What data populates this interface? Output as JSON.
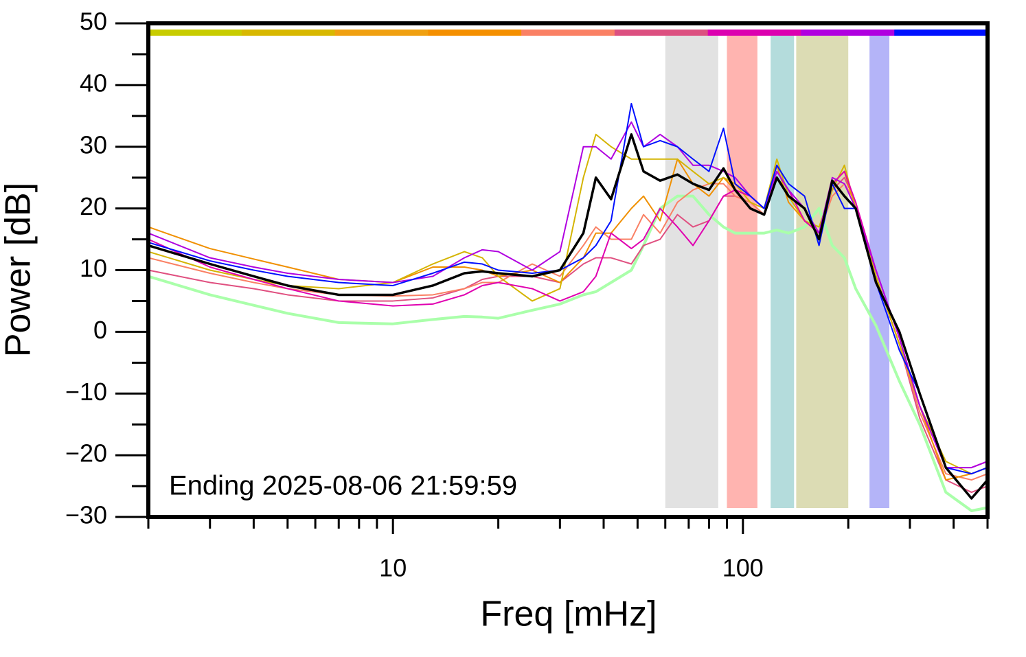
{
  "chart_data": {
    "type": "line",
    "xlabel": "Freq [mHz]",
    "ylabel": "Power [dB]",
    "annotation": "Ending 2025-08-06 21:59:59",
    "xscale": "log",
    "xlim": [
      2,
      500
    ],
    "xticks": [
      10,
      100
    ],
    "xminorticks": [
      2,
      3,
      4,
      5,
      6,
      7,
      8,
      9,
      20,
      30,
      40,
      50,
      60,
      70,
      80,
      90,
      200,
      300,
      400,
      500
    ],
    "ylim": [
      -30,
      50
    ],
    "yticks": [
      {
        "value": -30,
        "label": "−30"
      },
      {
        "value": -20,
        "label": "−20"
      },
      {
        "value": -10,
        "label": "−10"
      },
      0,
      10,
      20,
      30,
      40,
      50
    ],
    "yminorticks": [
      -25,
      -15,
      -5,
      5,
      15,
      25,
      35,
      45
    ],
    "colorbar": [
      "#c8cc00",
      "#d8b800",
      "#f0a010",
      "#f59000",
      "#fa8064",
      "#dc5080",
      "#dc00b0",
      "#b000e0",
      "#0010ff"
    ],
    "bands": [
      {
        "x": [
          60,
          85
        ],
        "color": "#e2e2e2"
      },
      {
        "x": [
          90,
          110
        ],
        "color": "#ffb4b0"
      },
      {
        "x": [
          120,
          140
        ],
        "color": "#b4dcdc"
      },
      {
        "x": [
          142,
          200
        ],
        "color": "#dcdcb4"
      },
      {
        "x": [
          230,
          262
        ],
        "color": "#b4b4f8"
      }
    ],
    "x": [
      2,
      3,
      4,
      5,
      7,
      10,
      13,
      16,
      18,
      20,
      25,
      30,
      35,
      38,
      42,
      48,
      52,
      58,
      65,
      72,
      80,
      88,
      95,
      105,
      115,
      125,
      135,
      150,
      165,
      180,
      195,
      210,
      240,
      280,
      320,
      380,
      450,
      500
    ],
    "series": [
      {
        "color": "#aaffaa",
        "width": 4,
        "values": [
          9,
          6,
          4.3,
          3,
          1.5,
          1.3,
          2,
          2.5,
          2.4,
          2.2,
          3.5,
          4.5,
          6,
          6.5,
          8,
          10,
          14,
          20,
          22,
          22,
          19,
          17,
          16,
          16,
          16,
          16.5,
          16,
          17,
          20,
          14,
          12,
          7,
          1,
          -8,
          -15,
          -26,
          -29,
          -28.5
        ]
      },
      {
        "color": "#e05080",
        "width": 2,
        "values": [
          10,
          8,
          7,
          6,
          5,
          5,
          5.5,
          7,
          8.5,
          9,
          9,
          8,
          11,
          12,
          12,
          11,
          14,
          15,
          19,
          17,
          18,
          22,
          22,
          21,
          19,
          25,
          22,
          18,
          16,
          23,
          25,
          21,
          9,
          -2,
          -14,
          -24,
          -26,
          -25
        ]
      },
      {
        "color": "#fa8064",
        "width": 2,
        "values": [
          12,
          9.5,
          8,
          7,
          6,
          5.8,
          6,
          7,
          8,
          8,
          11,
          9,
          14,
          17,
          15,
          15,
          19,
          16,
          21,
          23,
          24,
          24,
          22,
          21,
          19,
          25,
          22,
          18,
          16,
          22,
          24,
          21,
          9,
          -2,
          -13,
          -23,
          -24,
          -23
        ]
      },
      {
        "color": "#f09000",
        "width": 2,
        "values": [
          17,
          13.5,
          11.8,
          10.5,
          8.5,
          8,
          10.5,
          10.5,
          10,
          9,
          10,
          8,
          12,
          16,
          16,
          20,
          22,
          18,
          28,
          24,
          22,
          25,
          23,
          22,
          20,
          27,
          21,
          18,
          16,
          24,
          26,
          20,
          9,
          -2,
          -12,
          -24,
          -23,
          -22
        ]
      },
      {
        "color": "#d4b400",
        "width": 2,
        "values": [
          13,
          10,
          8.5,
          7.5,
          7,
          8,
          11,
          13,
          12,
          9,
          5,
          7,
          25,
          32,
          30,
          28,
          28,
          28,
          28,
          26,
          24,
          25,
          24,
          21,
          20,
          28,
          22,
          18,
          17,
          23,
          27,
          20,
          9,
          -2,
          -12,
          -21,
          -23,
          -22
        ]
      },
      {
        "color": "#e000b0",
        "width": 2,
        "values": [
          15,
          10.5,
          8.5,
          7,
          5,
          4.2,
          4.5,
          6,
          7.5,
          8,
          7,
          5,
          6.5,
          9,
          16,
          13.5,
          15,
          20,
          17,
          14,
          18,
          22,
          23,
          22,
          20,
          26,
          23,
          18,
          16,
          24,
          26,
          21,
          10,
          -1,
          -12,
          -22,
          -22,
          -21
        ]
      },
      {
        "color": "#b000e0",
        "width": 2,
        "values": [
          16,
          12,
          10.5,
          9.5,
          8.5,
          8,
          9,
          12,
          13.3,
          13,
          10,
          13,
          30,
          30,
          28,
          34,
          30,
          32,
          30,
          27,
          27,
          26,
          25,
          22,
          20,
          26,
          23,
          20,
          16,
          25,
          24,
          20,
          10,
          -1,
          -12,
          -22,
          -22,
          -21
        ]
      },
      {
        "color": "#0010ff",
        "width": 2,
        "values": [
          14.5,
          11.5,
          10,
          9,
          8,
          7.5,
          9.5,
          11.3,
          11,
          10,
          9.5,
          10,
          12,
          14,
          18,
          37,
          30,
          31,
          30,
          28,
          26,
          33,
          24,
          22,
          20,
          27,
          24,
          22,
          14,
          24,
          20,
          20,
          8,
          -3,
          -10,
          -22,
          -23,
          -22
        ]
      },
      {
        "color": "#000000",
        "width": 3.5,
        "values": [
          14,
          11,
          9,
          7.5,
          6,
          6,
          7.5,
          9.5,
          9.8,
          9.5,
          9,
          10,
          16,
          25,
          21.5,
          32,
          26,
          24.5,
          25.5,
          24,
          23,
          26.5,
          23,
          20,
          19,
          25,
          22,
          20,
          15,
          24.5,
          22,
          20,
          8,
          0,
          -10,
          -22,
          -27,
          -24
        ]
      }
    ]
  }
}
